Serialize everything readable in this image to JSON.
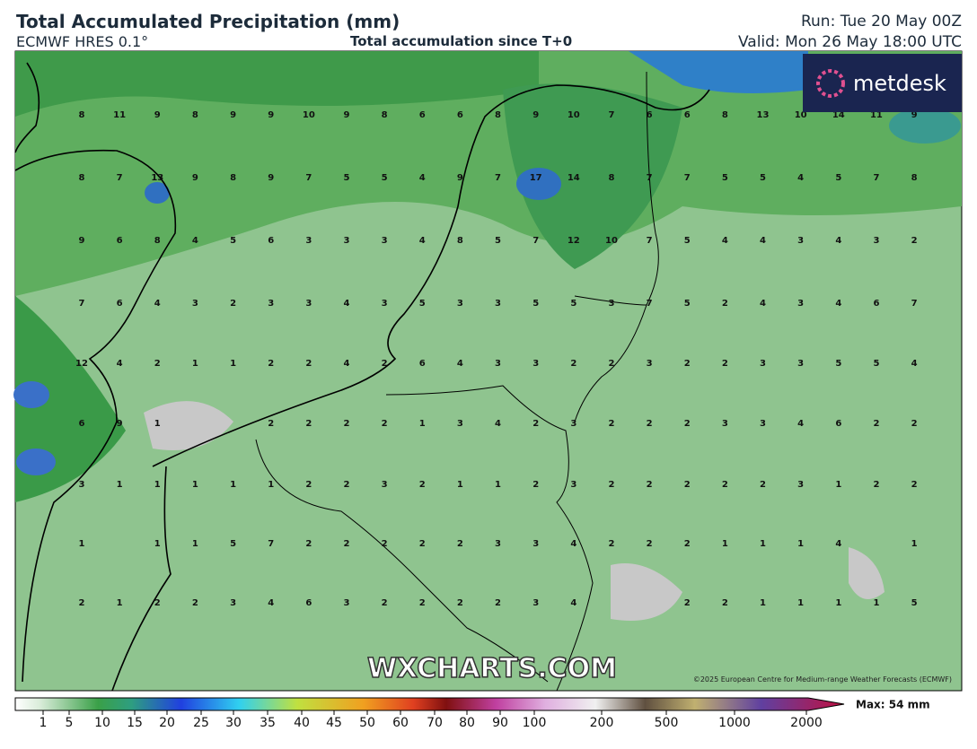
{
  "header": {
    "title": "Total Accumulated Precipitation (mm)",
    "model": "ECMWF HRES 0.1°",
    "subtitle": "Total accumulation since T+0",
    "run": "Run: Tue 20 May 00Z",
    "valid": "Valid: Mon 26 May 18:00 UTC"
  },
  "logo": "metdesk",
  "watermark": "WXCHARTS.COM",
  "copyright": "©2025 European Centre for Medium-range Weather Forecasts (ECMWF)",
  "grid_values": [
    [
      8,
      11,
      9,
      8,
      9,
      9,
      10,
      9,
      8,
      6,
      6,
      8,
      9,
      10,
      7,
      6,
      6,
      8,
      13,
      10,
      14,
      11,
      9
    ],
    [
      8,
      7,
      13,
      9,
      8,
      9,
      7,
      5,
      5,
      4,
      9,
      7,
      17,
      14,
      8,
      7,
      7,
      5,
      5,
      4,
      5,
      7,
      8
    ],
    [
      9,
      6,
      8,
      4,
      5,
      6,
      3,
      3,
      3,
      4,
      8,
      5,
      7,
      12,
      10,
      7,
      5,
      4,
      4,
      3,
      4,
      3,
      2
    ],
    [
      7,
      6,
      4,
      3,
      2,
      3,
      3,
      4,
      3,
      5,
      3,
      3,
      5,
      5,
      3,
      7,
      5,
      2,
      4,
      3,
      4,
      6,
      7
    ],
    [
      12,
      4,
      2,
      1,
      1,
      2,
      2,
      4,
      2,
      6,
      4,
      3,
      3,
      2,
      2,
      3,
      2,
      2,
      3,
      3,
      5,
      5,
      4
    ],
    [
      6,
      9,
      1,
      null,
      null,
      2,
      2,
      2,
      2,
      1,
      3,
      4,
      2,
      3,
      2,
      2,
      2,
      3,
      3,
      4,
      6,
      2,
      2
    ],
    [
      3,
      1,
      1,
      1,
      1,
      1,
      2,
      2,
      3,
      2,
      1,
      1,
      2,
      3,
      2,
      2,
      2,
      2,
      2,
      3,
      1,
      2,
      2
    ],
    [
      1,
      null,
      1,
      1,
      5,
      7,
      2,
      2,
      2,
      2,
      2,
      3,
      3,
      4,
      2,
      2,
      2,
      1,
      1,
      1,
      4,
      null,
      1
    ],
    [
      2,
      1,
      2,
      2,
      3,
      4,
      6,
      3,
      2,
      2,
      2,
      2,
      3,
      4,
      null,
      null,
      2,
      2,
      1,
      1,
      1,
      1,
      5
    ]
  ],
  "colorbar": {
    "ticks": [
      1,
      5,
      10,
      15,
      20,
      25,
      30,
      35,
      40,
      45,
      50,
      60,
      70,
      80,
      90,
      100,
      200,
      500,
      1000,
      2000
    ],
    "max_label": "Max: 54 mm"
  }
}
